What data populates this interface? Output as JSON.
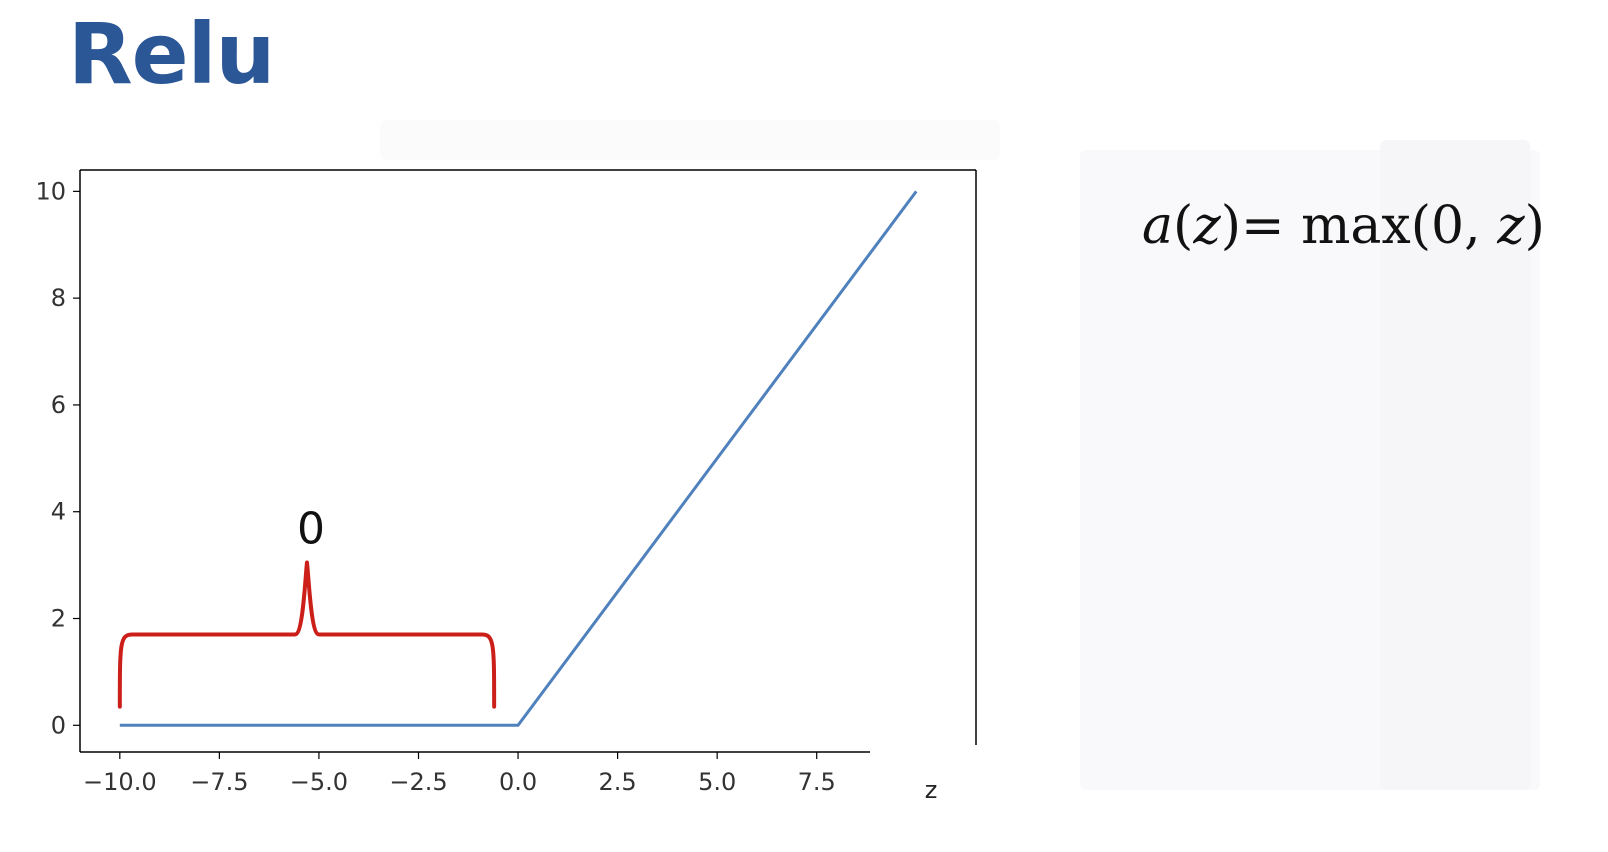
{
  "slide": {
    "title": "Relu",
    "title_color": "#2b5797",
    "formula": {
      "lhs_func": "a",
      "lhs_open": "(",
      "lhs_var": "z",
      "lhs_close": ")",
      "equals": "=",
      "rhs_func": " max(0,",
      "rhs_var": "z",
      "rhs_close": ")"
    }
  },
  "chart_data": {
    "type": "line",
    "title": "",
    "xlabel": "z",
    "ylabel": "",
    "xlim": [
      -11,
      11.5
    ],
    "ylim": [
      -0.5,
      10.4
    ],
    "grid": false,
    "x_ticks": [
      -10.0,
      -7.5,
      -5.0,
      -2.5,
      0.0,
      2.5,
      5.0,
      7.5
    ],
    "x_tick_labels": [
      "−10.0",
      "−7.5",
      "−5.0",
      "−2.5",
      "0.0",
      "2.5",
      "5.0",
      "7.5"
    ],
    "y_ticks": [
      0,
      2,
      4,
      6,
      8,
      10
    ],
    "y_tick_labels": [
      "0",
      "2",
      "4",
      "6",
      "8",
      "10"
    ],
    "series": [
      {
        "x": [
          -10,
          0,
          10
        ],
        "y": [
          0,
          0,
          10
        ],
        "color": "#4f81bd"
      }
    ],
    "annotations": [
      {
        "text": "0",
        "shape": "brace",
        "x_start": -10,
        "x_end": -0.6,
        "y_bottom": 0.35,
        "y_top": 1.7,
        "y_tip": 3.05,
        "text_y": 3.7,
        "color": "#cc1f1a"
      }
    ]
  }
}
